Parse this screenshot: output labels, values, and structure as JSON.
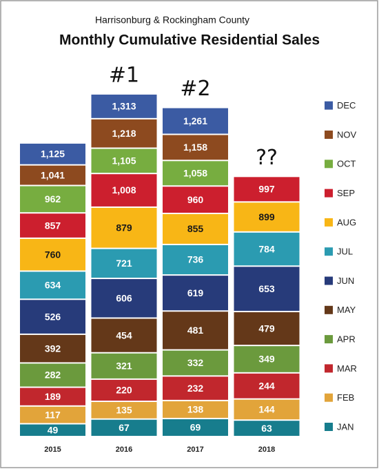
{
  "chart_data": {
    "type": "bar",
    "stacked": "cumulative",
    "title": "Monthly Cumulative Residential Sales",
    "subtitle": "Harrisonburg & Rockingham County",
    "categories": [
      "2015",
      "2016",
      "2017",
      "2018"
    ],
    "annotations": [
      null,
      "#1",
      "#2",
      "??"
    ],
    "series": [
      {
        "name": "JAN",
        "color": "#177d8d",
        "label_color": "#ffffff",
        "values": [
          49,
          67,
          69,
          63
        ]
      },
      {
        "name": "FEB",
        "color": "#e2a43a",
        "label_color": "#ffffff",
        "values": [
          117,
          135,
          138,
          144
        ]
      },
      {
        "name": "MAR",
        "color": "#c1272d",
        "label_color": "#ffffff",
        "values": [
          189,
          220,
          232,
          244
        ]
      },
      {
        "name": "APR",
        "color": "#6b9a3d",
        "label_color": "#ffffff",
        "values": [
          282,
          321,
          332,
          349
        ]
      },
      {
        "name": "MAY",
        "color": "#643819",
        "label_color": "#ffffff",
        "values": [
          392,
          454,
          481,
          479
        ]
      },
      {
        "name": "JUN",
        "color": "#273b7a",
        "label_color": "#ffffff",
        "values": [
          526,
          606,
          619,
          653
        ]
      },
      {
        "name": "JUL",
        "color": "#2b9bb1",
        "label_color": "#ffffff",
        "values": [
          634,
          721,
          736,
          784
        ]
      },
      {
        "name": "AUG",
        "color": "#f8b616",
        "label_color": "#1a1a1a",
        "values": [
          760,
          879,
          855,
          899
        ]
      },
      {
        "name": "SEP",
        "color": "#cc1f2e",
        "label_color": "#ffffff",
        "values": [
          857,
          1008,
          960,
          997
        ],
        "value_labels": [
          "857",
          "1,008",
          "960",
          "997"
        ]
      },
      {
        "name": "OCT",
        "color": "#77ad40",
        "label_color": "#ffffff",
        "values": [
          962,
          1105,
          1058,
          null
        ],
        "value_labels": [
          "962",
          "1,105",
          "1,058",
          null
        ]
      },
      {
        "name": "NOV",
        "color": "#8d4a1f",
        "label_color": "#ffffff",
        "values": [
          1041,
          1218,
          1158,
          null
        ],
        "value_labels": [
          "1,041",
          "1,218",
          "1,158",
          null
        ]
      },
      {
        "name": "DEC",
        "color": "#3b5ba3",
        "label_color": "#ffffff",
        "values": [
          1125,
          1313,
          1261,
          null
        ],
        "value_labels": [
          "1,125",
          "1,313",
          "1,261",
          null
        ]
      }
    ]
  }
}
